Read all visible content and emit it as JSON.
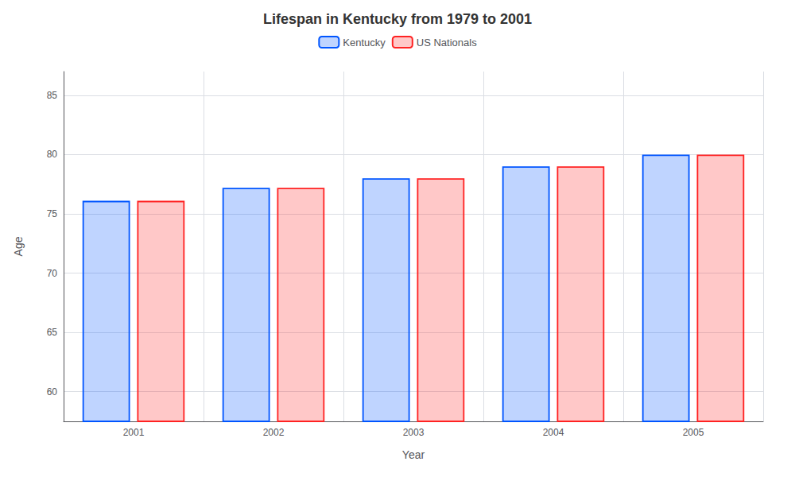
{
  "chart_data": {
    "type": "bar",
    "title": "Lifespan in Kentucky from 1979 to 2001",
    "xlabel": "Year",
    "ylabel": "Age",
    "categories": [
      "2001",
      "2002",
      "2003",
      "2004",
      "2005"
    ],
    "series": [
      {
        "name": "Kentucky",
        "color": "#0055ff",
        "values": [
          76.1,
          77.2,
          78.0,
          79.0,
          80.0
        ]
      },
      {
        "name": "US Nationals",
        "color": "#ff2222",
        "values": [
          76.1,
          77.2,
          78.0,
          79.0,
          80.0
        ]
      }
    ],
    "ylim": [
      57.5,
      87
    ],
    "yticks": [
      60,
      65,
      70,
      75,
      80,
      85
    ],
    "grid": true,
    "legend": "top"
  }
}
